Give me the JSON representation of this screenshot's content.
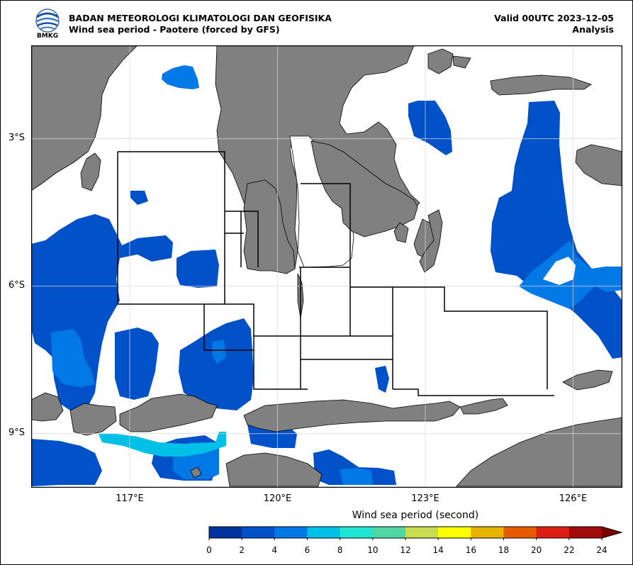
{
  "header": {
    "org": "BADAN METEOROLOGI KLIMATOLOGI DAN GEOFISIKA",
    "subtitle": "Wind sea period - Paotere (forced by GFS)",
    "valid": "Valid 00UTC 2023-12-05",
    "status": "Analysis",
    "logo_text": "BMKG"
  },
  "map": {
    "lon_range": [
      115,
      127
    ],
    "lat_range": [
      -10.1,
      -1.1
    ],
    "lon_ticks": [
      117,
      120,
      123,
      126
    ],
    "lon_tick_labels": [
      "117°E",
      "120°E",
      "123°E",
      "126°E"
    ],
    "lat_ticks": [
      -3,
      -6,
      -9
    ],
    "lat_tick_labels": [
      "3°S",
      "6°S",
      "9°S"
    ],
    "grid": true,
    "land_color": "#808080",
    "sea_color": "#ffffff"
  },
  "colorbar": {
    "title": "Wind sea period (second)",
    "ticks": [
      "0",
      "2",
      "4",
      "6",
      "8",
      "10",
      "12",
      "14",
      "16",
      "18",
      "20",
      "22",
      "24"
    ],
    "colors": [
      "#0033a0",
      "#0050c8",
      "#0078e6",
      "#00c0e6",
      "#1ee6d2",
      "#50d8a0",
      "#c8dc50",
      "#ffff00",
      "#e6b400",
      "#e65a00",
      "#dc1e14",
      "#a00a0a"
    ],
    "extend_color": "#780000"
  }
}
